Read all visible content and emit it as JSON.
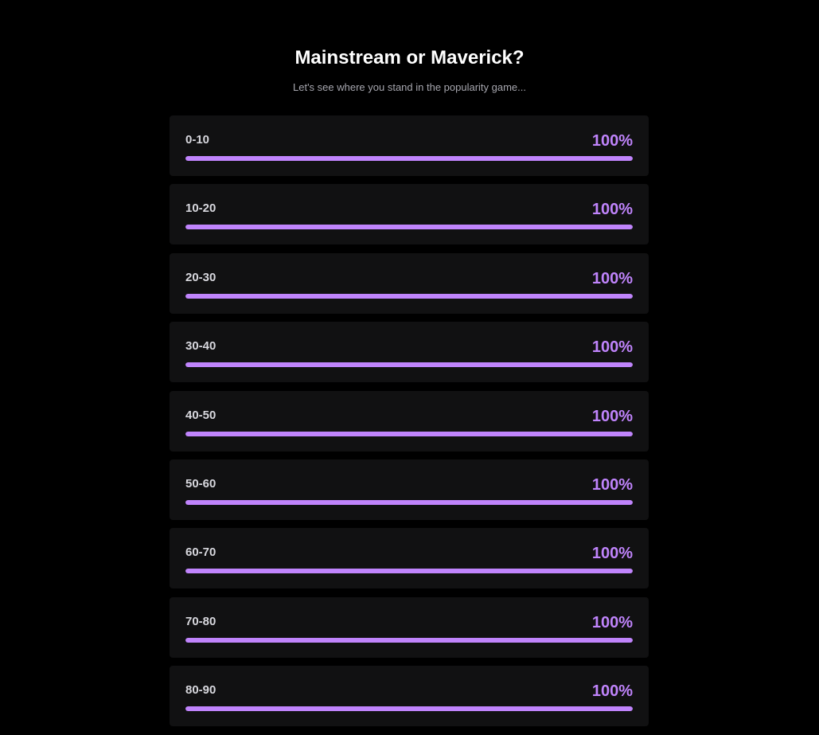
{
  "header": {
    "title": "Mainstream or Maverick?",
    "subtitle": "Let's see where you stand in the popularity game..."
  },
  "colors": {
    "background": "#000000",
    "card": "#111112",
    "accent": "#c084fc",
    "label": "#d8d8de",
    "subtitle": "#a6a6ae"
  },
  "ranges": [
    {
      "label": "0-10",
      "percent_text": "100%",
      "fill_fraction": 1.0
    },
    {
      "label": "10-20",
      "percent_text": "100%",
      "fill_fraction": 1.0
    },
    {
      "label": "20-30",
      "percent_text": "100%",
      "fill_fraction": 1.0
    },
    {
      "label": "30-40",
      "percent_text": "100%",
      "fill_fraction": 1.0
    },
    {
      "label": "40-50",
      "percent_text": "100%",
      "fill_fraction": 1.0
    },
    {
      "label": "50-60",
      "percent_text": "100%",
      "fill_fraction": 1.0
    },
    {
      "label": "60-70",
      "percent_text": "100%",
      "fill_fraction": 1.0
    },
    {
      "label": "70-80",
      "percent_text": "100%",
      "fill_fraction": 1.0
    },
    {
      "label": "80-90",
      "percent_text": "100%",
      "fill_fraction": 1.0
    }
  ]
}
